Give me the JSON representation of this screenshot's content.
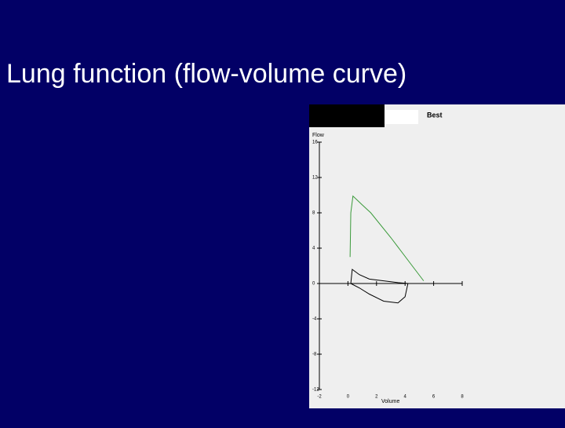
{
  "title": "Lung function (flow-volume curve)",
  "chart_data": {
    "type": "line",
    "title": "Best",
    "y_label": "Flow",
    "x_label": "Volume",
    "xlim": [
      -2,
      8
    ],
    "xticks": [
      -2,
      0,
      2,
      4,
      6,
      8
    ],
    "ylim": [
      -12,
      16
    ],
    "yticks": [
      16,
      12,
      8,
      4,
      0,
      -4,
      -8,
      -12
    ],
    "series": [
      {
        "color": "#3a9a3a",
        "x": [
          0.15,
          0.2,
          0.35,
          1.0,
          1.6,
          3,
          4.5,
          5.3
        ],
        "values": [
          3,
          8,
          9.9,
          8.9,
          8.0,
          5.2,
          2.0,
          0.3
        ]
      },
      {
        "color": "#000000",
        "x": [
          0.2,
          0.3,
          0.8,
          1.5,
          2.5,
          3.5,
          4.2,
          4.0,
          3.5,
          2.5,
          1.5,
          0.8,
          0.2
        ],
        "values": [
          0,
          1.6,
          1.0,
          0.5,
          0.3,
          0.1,
          0,
          -1.5,
          -2.2,
          -2.0,
          -1.2,
          -0.5,
          0
        ]
      }
    ]
  }
}
